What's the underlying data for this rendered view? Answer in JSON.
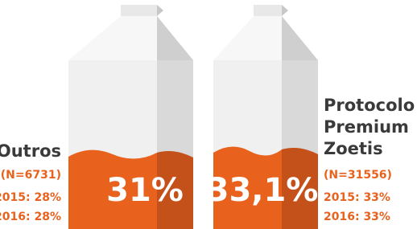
{
  "groups": [
    {
      "name": "Outros",
      "n": "(N=6731)",
      "value": "31%",
      "history": [
        "2015: 28%",
        "2016: 28%"
      ]
    },
    {
      "name": [
        "Protocolo",
        "Premium",
        "Zoetis"
      ],
      "n": "(N=31556)",
      "value": "33,1%",
      "history": [
        "2015: 33%",
        "2016: 33%"
      ]
    }
  ]
}
